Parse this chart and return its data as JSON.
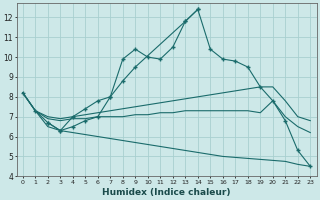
{
  "xlabel": "Humidex (Indice chaleur)",
  "background_color": "#cde8e8",
  "grid_color": "#a8d0d0",
  "line_color": "#1a6b6b",
  "xlim": [
    -0.5,
    23.5
  ],
  "ylim": [
    4,
    12.7
  ],
  "yticks": [
    4,
    5,
    6,
    7,
    8,
    9,
    10,
    11,
    12
  ],
  "xticks": [
    0,
    1,
    2,
    3,
    4,
    5,
    6,
    7,
    8,
    9,
    10,
    11,
    12,
    13,
    14,
    15,
    16,
    17,
    18,
    19,
    20,
    21,
    22,
    23
  ],
  "curve1_x": [
    0,
    1,
    2,
    3,
    4,
    5,
    6,
    7,
    8,
    9,
    10,
    11,
    12,
    13,
    14,
    15,
    16,
    17,
    18,
    19,
    20,
    21,
    22,
    23
  ],
  "curve1_y": [
    8.2,
    7.3,
    6.7,
    6.3,
    6.5,
    6.8,
    7.0,
    8.0,
    9.9,
    10.4,
    10.0,
    9.9,
    10.5,
    11.8,
    12.4,
    10.4,
    9.9,
    9.8,
    9.5,
    8.5,
    7.8,
    6.8,
    5.3,
    4.5
  ],
  "curve2_x": [
    2,
    3,
    4,
    5,
    6,
    7,
    8,
    9,
    13,
    14
  ],
  "curve2_y": [
    6.7,
    6.3,
    7.0,
    7.4,
    7.8,
    8.0,
    8.8,
    9.5,
    11.8,
    12.4
  ],
  "curve3_x": [
    0,
    1,
    2,
    3,
    4,
    5,
    6,
    7,
    8,
    9,
    10,
    11,
    12,
    13,
    14,
    15,
    16,
    17,
    18,
    19,
    20,
    21,
    22,
    23
  ],
  "curve3_y": [
    8.2,
    7.3,
    7.0,
    6.9,
    7.0,
    7.1,
    7.2,
    7.3,
    7.4,
    7.5,
    7.6,
    7.7,
    7.8,
    7.9,
    8.0,
    8.1,
    8.2,
    8.3,
    8.4,
    8.5,
    8.5,
    7.8,
    7.0,
    6.8
  ],
  "curve4_x": [
    0,
    1,
    2,
    3,
    4,
    5,
    6,
    7,
    8,
    9,
    10,
    11,
    12,
    13,
    14,
    15,
    16,
    17,
    18,
    19,
    20,
    21,
    22,
    23
  ],
  "curve4_y": [
    8.2,
    7.3,
    6.9,
    6.8,
    6.9,
    6.9,
    7.0,
    7.0,
    7.0,
    7.1,
    7.1,
    7.2,
    7.2,
    7.3,
    7.3,
    7.3,
    7.3,
    7.3,
    7.3,
    7.2,
    7.8,
    7.0,
    6.5,
    6.2
  ],
  "curve5_x": [
    0,
    1,
    2,
    3,
    4,
    5,
    6,
    7,
    8,
    9,
    10,
    11,
    12,
    13,
    14,
    15,
    16,
    17,
    18,
    19,
    20,
    21,
    22,
    23
  ],
  "curve5_y": [
    8.2,
    7.3,
    6.5,
    6.3,
    6.2,
    6.1,
    6.0,
    5.9,
    5.8,
    5.7,
    5.6,
    5.5,
    5.4,
    5.3,
    5.2,
    5.1,
    5.0,
    4.95,
    4.9,
    4.85,
    4.8,
    4.75,
    4.6,
    4.5
  ]
}
